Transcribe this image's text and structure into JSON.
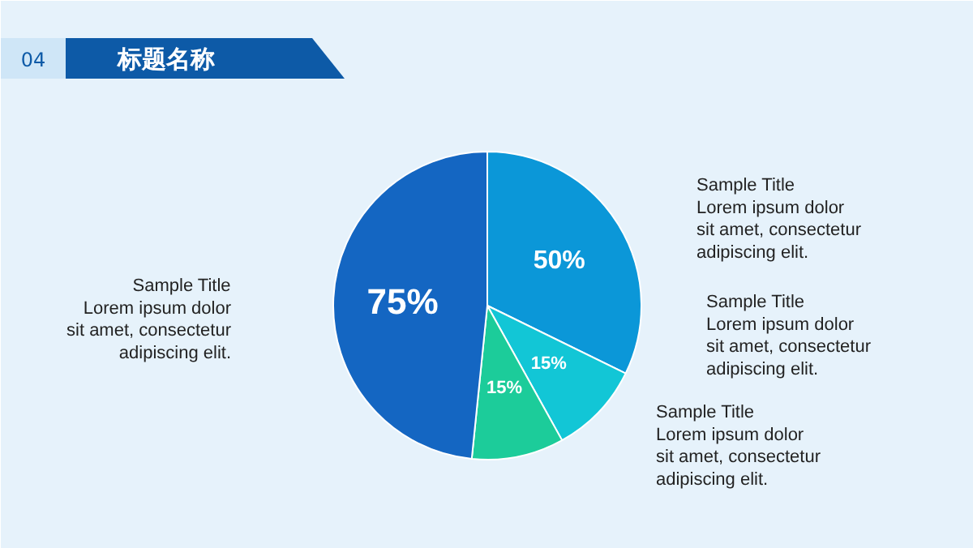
{
  "chart_data": {
    "type": "pie",
    "title": "标题名称",
    "subtitle": "04",
    "categories": [
      null,
      null,
      null,
      null
    ],
    "values": [
      50,
      15,
      15,
      75
    ],
    "value_labels": [
      "50%",
      "15%",
      "15%",
      "75%"
    ],
    "colors": [
      "#0b97d8",
      "#12c6d6",
      "#1ccc9a",
      "#1466c2"
    ],
    "annotations": [
      "Sample Title\nLorem ipsum dolor\nsit amet, consectetur\nadipiscing elit.",
      "Sample Title\nLorem ipsum dolor\nsit amet, consectetur\nadipiscing elit.",
      "Sample Title\nLorem ipsum dolor\nsit amet, consectetur\nadipiscing elit.",
      "Sample Title\nLorem ipsum dolor\nsit amet, consectetur\nadipiscing elit."
    ]
  }
}
